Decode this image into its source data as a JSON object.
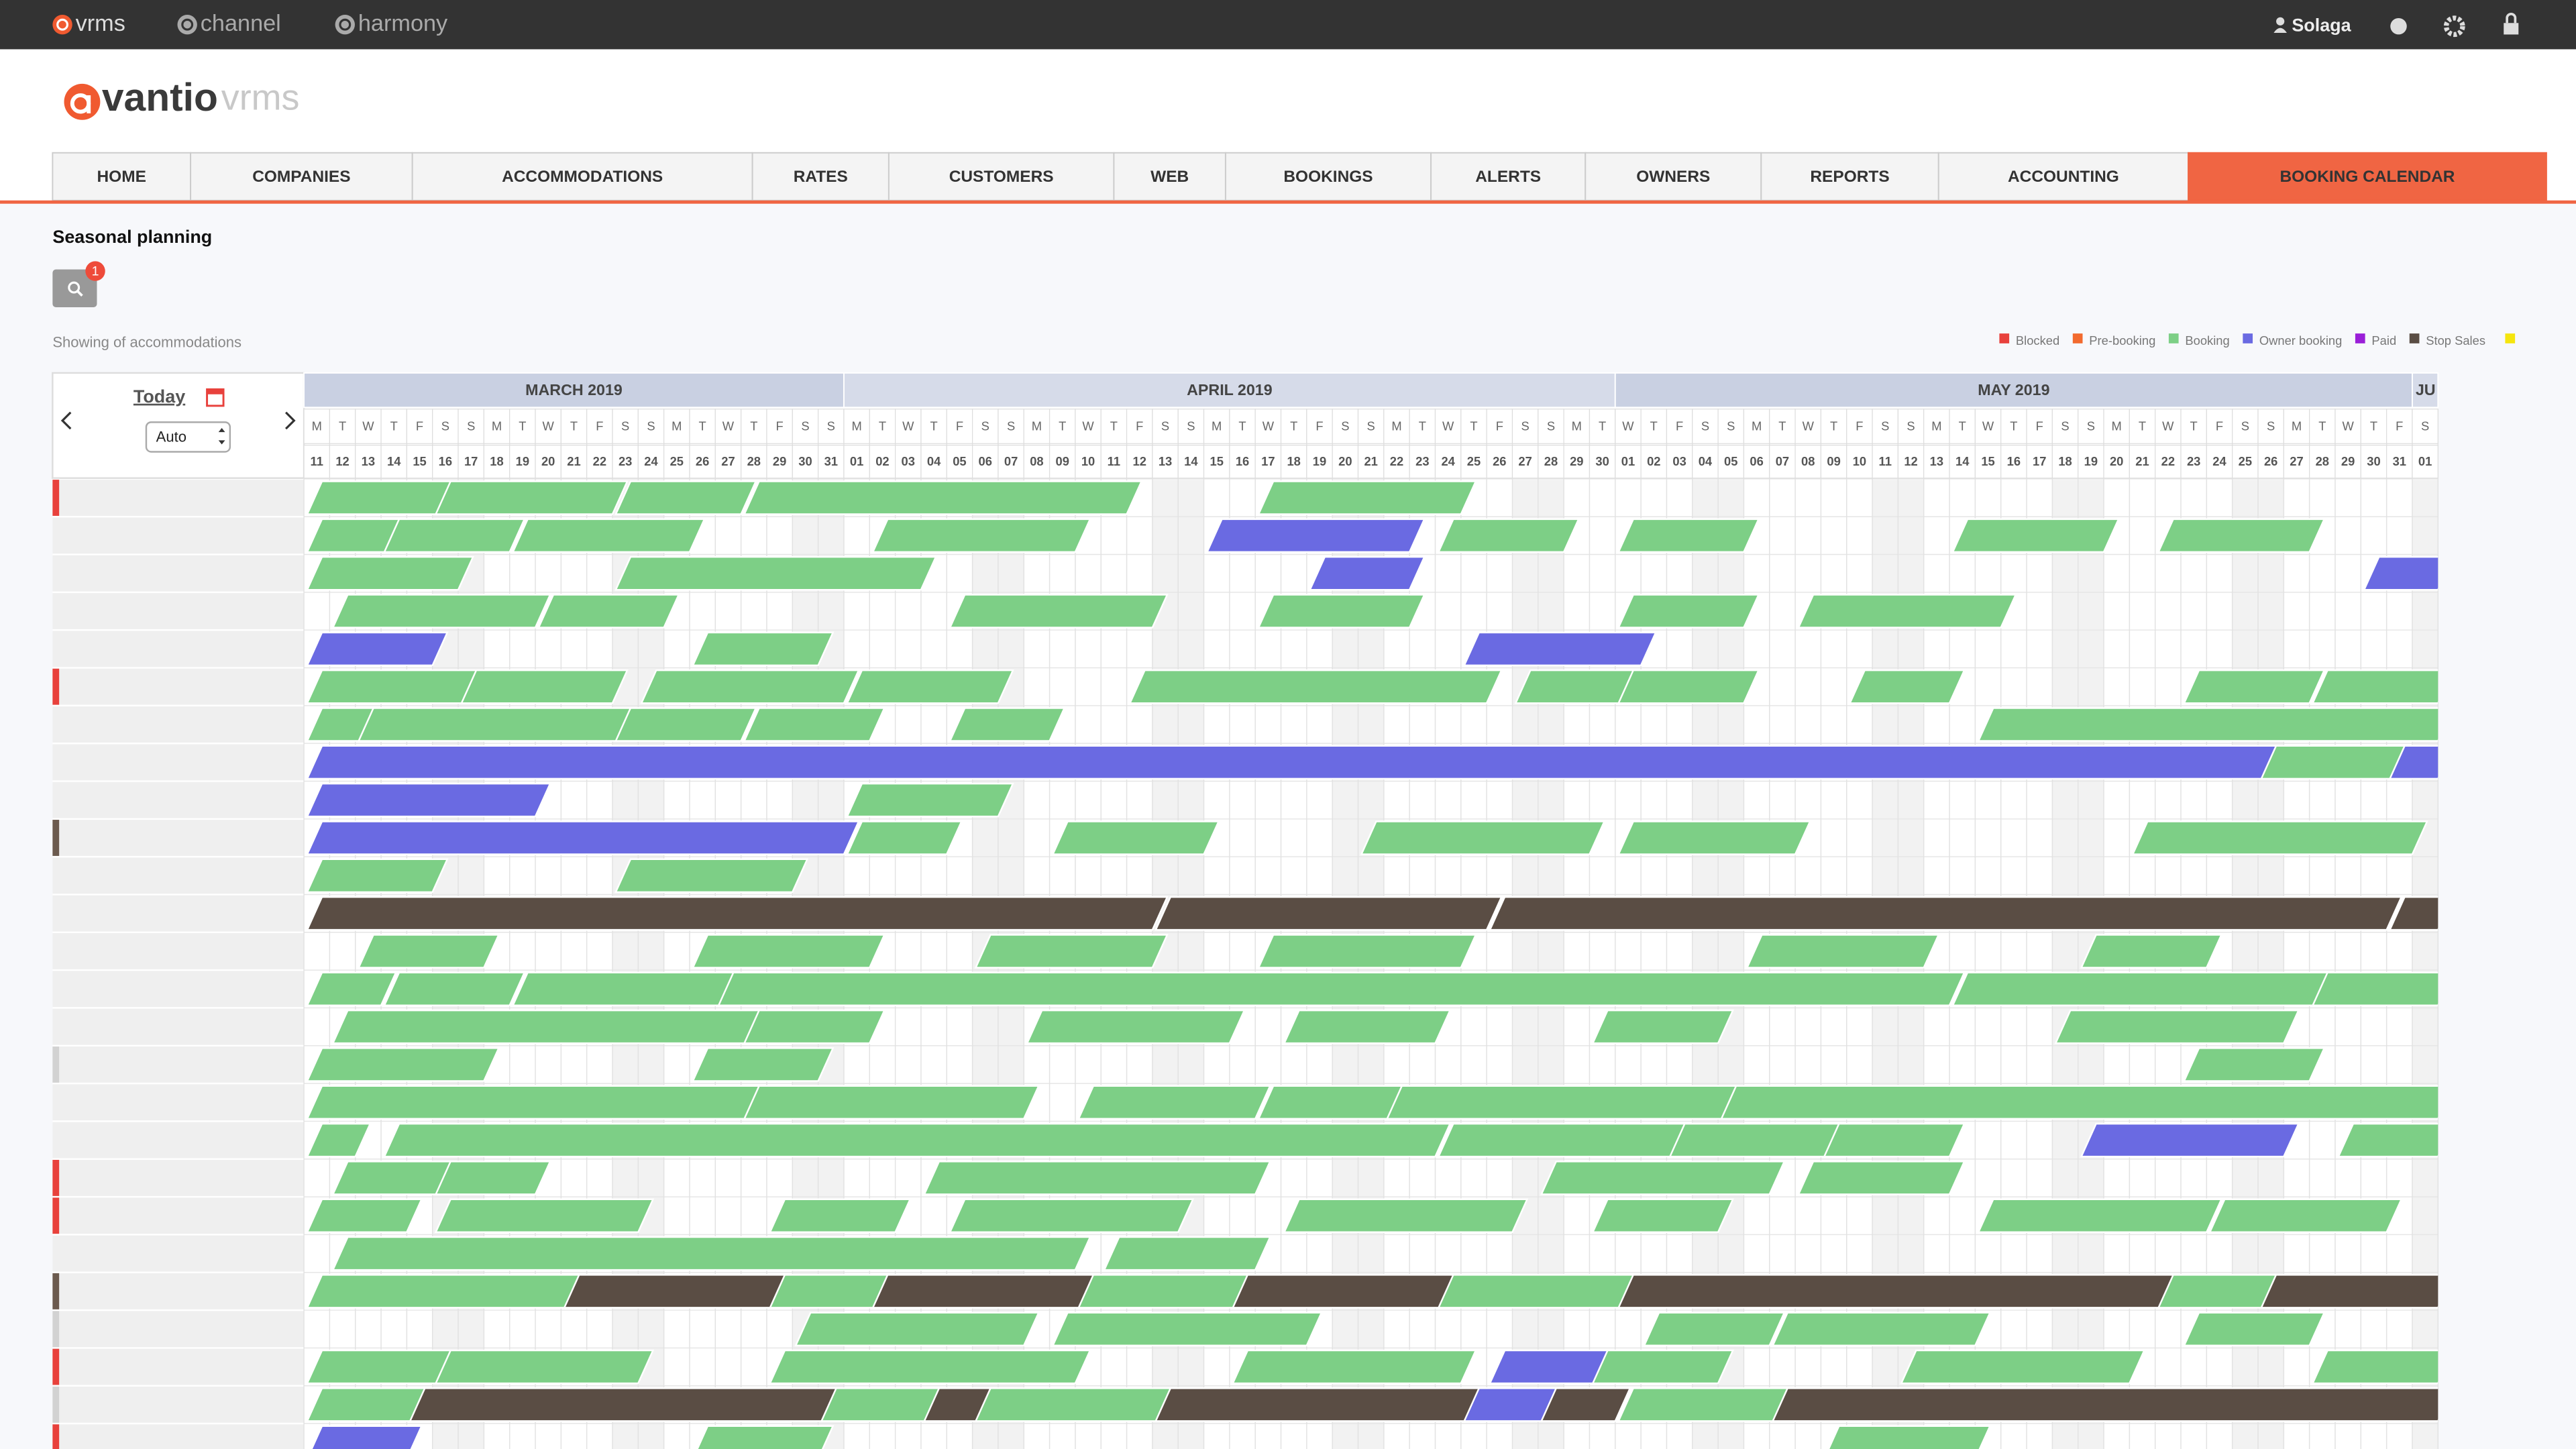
{
  "top_bar": {
    "apps": [
      "vrms",
      "channel",
      "harmony"
    ],
    "user": "Solaga"
  },
  "logo": {
    "name": "vantio",
    "suffix": "vrms"
  },
  "nav": [
    "HOME",
    "COMPANIES",
    "ACCOMMODATIONS",
    "RATES",
    "CUSTOMERS",
    "WEB",
    "BOOKINGS",
    "ALERTS",
    "OWNERS",
    "REPORTS",
    "ACCOUNTING",
    "BOOKING CALENDAR"
  ],
  "page": {
    "title": "Seasonal planning",
    "badge": "1",
    "subtitle": "Showing of accommodations"
  },
  "legend": [
    {
      "name": "Blocked",
      "color": "#e8413c"
    },
    {
      "name": "Pre-booking",
      "color": "#f26a2e"
    },
    {
      "name": "Booking",
      "color": "#7dcf86"
    },
    {
      "name": "Owner booking",
      "color": "#6a6ae2"
    },
    {
      "name": "Paid",
      "color": "#9a1fd8"
    },
    {
      "name": "Stop Sales",
      "color": "#5a4d44"
    }
  ],
  "calendar": {
    "today": "Today",
    "zoom": "Auto",
    "months": [
      "MARCH 2019",
      "APRIL 2019",
      "MAY 2019",
      "JU"
    ],
    "weekdays": [
      "M",
      "T",
      "W",
      "T",
      "F",
      "S",
      "S",
      "M",
      "T",
      "W",
      "T",
      "F",
      "S",
      "S",
      "M",
      "T",
      "W",
      "T",
      "F",
      "S",
      "S",
      "M",
      "T",
      "W",
      "T",
      "F",
      "S",
      "S",
      "M",
      "T",
      "W",
      "T",
      "F",
      "S",
      "S",
      "M",
      "T",
      "W",
      "T",
      "F",
      "S",
      "S",
      "M",
      "T",
      "W",
      "T",
      "F",
      "S",
      "S",
      "M",
      "T",
      "W",
      "T",
      "F",
      "S",
      "S",
      "M",
      "T",
      "W",
      "T",
      "F",
      "S",
      "S",
      "M",
      "T",
      "W",
      "T",
      "F",
      "S",
      "S",
      "M",
      "T",
      "W",
      "T",
      "F",
      "S",
      "S",
      "M",
      "T",
      "W",
      "T",
      "F",
      "S"
    ],
    "days": [
      "11",
      "12",
      "13",
      "14",
      "15",
      "16",
      "17",
      "18",
      "19",
      "20",
      "21",
      "22",
      "23",
      "24",
      "25",
      "26",
      "27",
      "28",
      "29",
      "30",
      "31",
      "01",
      "02",
      "03",
      "04",
      "05",
      "06",
      "07",
      "08",
      "09",
      "10",
      "11",
      "12",
      "13",
      "14",
      "15",
      "16",
      "17",
      "18",
      "19",
      "20",
      "21",
      "22",
      "23",
      "24",
      "25",
      "26",
      "27",
      "28",
      "29",
      "30",
      "01",
      "02",
      "03",
      "04",
      "05",
      "06",
      "07",
      "08",
      "09",
      "10",
      "11",
      "12",
      "13",
      "14",
      "15",
      "16",
      "17",
      "18",
      "19",
      "20",
      "21",
      "22",
      "23",
      "24",
      "25",
      "26",
      "27",
      "28",
      "29",
      "30",
      "31",
      "01"
    ],
    "rows": [
      {
        "flag": "#e8413c",
        "bars": [
          [
            0,
            6,
            2
          ],
          [
            5,
            12,
            2
          ],
          [
            12,
            17,
            2
          ],
          [
            17,
            32,
            2
          ],
          [
            37,
            45,
            2
          ]
        ]
      },
      {
        "flag": null,
        "bars": [
          [
            0,
            4,
            2
          ],
          [
            3,
            8,
            2
          ],
          [
            8,
            15,
            2
          ],
          [
            22,
            30,
            2
          ],
          [
            35,
            43,
            3
          ],
          [
            44,
            49,
            2
          ],
          [
            51,
            56,
            2
          ],
          [
            64,
            70,
            2
          ],
          [
            72,
            78,
            2
          ]
        ]
      },
      {
        "flag": null,
        "bars": [
          [
            0,
            6,
            2
          ],
          [
            12,
            24,
            2
          ],
          [
            39,
            43,
            3
          ],
          [
            80,
            83,
            3
          ]
        ]
      },
      {
        "flag": null,
        "bars": [
          [
            1,
            9,
            2
          ],
          [
            9,
            14,
            2
          ],
          [
            25,
            33,
            2
          ],
          [
            37,
            43,
            2
          ],
          [
            51,
            56,
            2
          ],
          [
            58,
            66,
            2
          ]
        ]
      },
      {
        "flag": null,
        "bars": [
          [
            0,
            5,
            3
          ],
          [
            15,
            20,
            2
          ],
          [
            45,
            52,
            3
          ]
        ]
      },
      {
        "flag": "#e8413c",
        "bars": [
          [
            0,
            7,
            2
          ],
          [
            6,
            12,
            2
          ],
          [
            13,
            21,
            2
          ],
          [
            21,
            27,
            2
          ],
          [
            32,
            46,
            2
          ],
          [
            47,
            52,
            2
          ],
          [
            51,
            56,
            2
          ],
          [
            60,
            64,
            2
          ],
          [
            73,
            78,
            2
          ],
          [
            78,
            83,
            2
          ]
        ]
      },
      {
        "flag": null,
        "bars": [
          [
            0,
            3,
            2
          ],
          [
            2,
            13,
            2
          ],
          [
            12,
            17,
            2
          ],
          [
            17,
            22,
            2
          ],
          [
            25,
            29,
            2
          ],
          [
            65,
            83,
            2
          ]
        ]
      },
      {
        "flag": null,
        "bars": [
          [
            0,
            77,
            3
          ],
          [
            76,
            82,
            2
          ],
          [
            81,
            83,
            3
          ]
        ]
      },
      {
        "flag": null,
        "bars": [
          [
            0,
            9,
            3
          ],
          [
            21,
            27,
            2
          ]
        ]
      },
      {
        "flag": "#6b5a4e",
        "bars": [
          [
            0,
            21,
            3
          ],
          [
            21,
            25,
            2
          ],
          [
            29,
            35,
            2
          ],
          [
            41,
            50,
            2
          ],
          [
            51,
            58,
            2
          ],
          [
            71,
            82,
            2
          ]
        ]
      },
      {
        "flag": null,
        "bars": [
          [
            0,
            5,
            2
          ],
          [
            12,
            19,
            2
          ]
        ]
      },
      {
        "flag": null,
        "bars": [
          [
            0,
            33,
            5
          ],
          [
            33,
            46,
            5
          ],
          [
            46,
            81,
            5
          ],
          [
            81,
            83,
            5
          ]
        ]
      },
      {
        "flag": null,
        "bars": [
          [
            2,
            7,
            2
          ],
          [
            15,
            22,
            2
          ],
          [
            26,
            33,
            2
          ],
          [
            37,
            45,
            2
          ],
          [
            56,
            63,
            2
          ],
          [
            69,
            74,
            2
          ]
        ]
      },
      {
        "flag": null,
        "bars": [
          [
            0,
            3,
            2
          ],
          [
            3,
            8,
            2
          ],
          [
            8,
            17,
            2
          ],
          [
            16,
            64,
            2
          ],
          [
            64,
            79,
            2
          ],
          [
            78,
            83,
            2
          ]
        ]
      },
      {
        "flag": null,
        "bars": [
          [
            1,
            18,
            2
          ],
          [
            17,
            22,
            2
          ],
          [
            28,
            36,
            2
          ],
          [
            38,
            44,
            2
          ],
          [
            50,
            55,
            2
          ],
          [
            68,
            77,
            2
          ]
        ]
      },
      {
        "flag": "#d2d2d2",
        "bars": [
          [
            0,
            7,
            2
          ],
          [
            15,
            20,
            2
          ],
          [
            73,
            78,
            2
          ]
        ]
      },
      {
        "flag": null,
        "bars": [
          [
            0,
            18,
            2
          ],
          [
            17,
            28,
            2
          ],
          [
            30,
            37,
            2
          ],
          [
            37,
            43,
            2
          ],
          [
            42,
            56,
            2
          ],
          [
            55,
            83,
            2
          ]
        ]
      },
      {
        "flag": null,
        "bars": [
          [
            0,
            2,
            2
          ],
          [
            3,
            44,
            2
          ],
          [
            44,
            54,
            2
          ],
          [
            53,
            60,
            2
          ],
          [
            59,
            64,
            2
          ],
          [
            69,
            77,
            3
          ],
          [
            79,
            83,
            2
          ]
        ]
      },
      {
        "flag": "#e8413c",
        "bars": [
          [
            1,
            6,
            2
          ],
          [
            5,
            9,
            2
          ],
          [
            24,
            37,
            2
          ],
          [
            48,
            57,
            2
          ],
          [
            58,
            64,
            2
          ]
        ]
      },
      {
        "flag": "#e8413c",
        "bars": [
          [
            0,
            4,
            2
          ],
          [
            5,
            13,
            2
          ],
          [
            18,
            23,
            2
          ],
          [
            25,
            34,
            2
          ],
          [
            38,
            47,
            2
          ],
          [
            50,
            55,
            2
          ],
          [
            65,
            74,
            2
          ],
          [
            74,
            81,
            2
          ]
        ]
      },
      {
        "flag": null,
        "bars": [
          [
            1,
            30,
            2
          ],
          [
            31,
            37,
            2
          ]
        ]
      },
      {
        "flag": "#6b5a4e",
        "bars": [
          [
            0,
            11,
            2
          ],
          [
            10,
            19,
            5
          ],
          [
            18,
            23,
            2
          ],
          [
            22,
            31,
            5
          ],
          [
            30,
            37,
            2
          ],
          [
            36,
            45,
            5
          ],
          [
            44,
            52,
            2
          ],
          [
            51,
            73,
            5
          ],
          [
            72,
            77,
            2
          ],
          [
            76,
            83,
            5
          ]
        ]
      },
      {
        "flag": "#d2d2d2",
        "bars": [
          [
            19,
            28,
            2
          ],
          [
            29,
            39,
            2
          ],
          [
            52,
            57,
            2
          ],
          [
            57,
            65,
            2
          ],
          [
            73,
            78,
            2
          ]
        ]
      },
      {
        "flag": "#e8413c",
        "bars": [
          [
            0,
            6,
            2
          ],
          [
            5,
            13,
            2
          ],
          [
            18,
            30,
            2
          ],
          [
            36,
            45,
            2
          ],
          [
            46,
            51,
            3
          ],
          [
            50,
            55,
            2
          ],
          [
            62,
            71,
            2
          ],
          [
            78,
            83,
            2
          ]
        ]
      },
      {
        "flag": "#d2d2d2",
        "bars": [
          [
            0,
            5,
            2
          ],
          [
            4,
            21,
            5
          ],
          [
            20,
            25,
            2
          ],
          [
            24,
            27,
            5
          ],
          [
            26,
            34,
            2
          ],
          [
            33,
            46,
            5
          ],
          [
            45,
            49,
            3
          ],
          [
            48,
            51,
            5
          ],
          [
            51,
            58,
            2
          ],
          [
            57,
            83,
            5
          ]
        ]
      },
      {
        "flag": "#e8413c",
        "bars": [
          [
            0,
            4,
            3
          ],
          [
            15,
            20,
            2
          ],
          [
            59,
            65,
            2
          ]
        ]
      }
    ]
  }
}
